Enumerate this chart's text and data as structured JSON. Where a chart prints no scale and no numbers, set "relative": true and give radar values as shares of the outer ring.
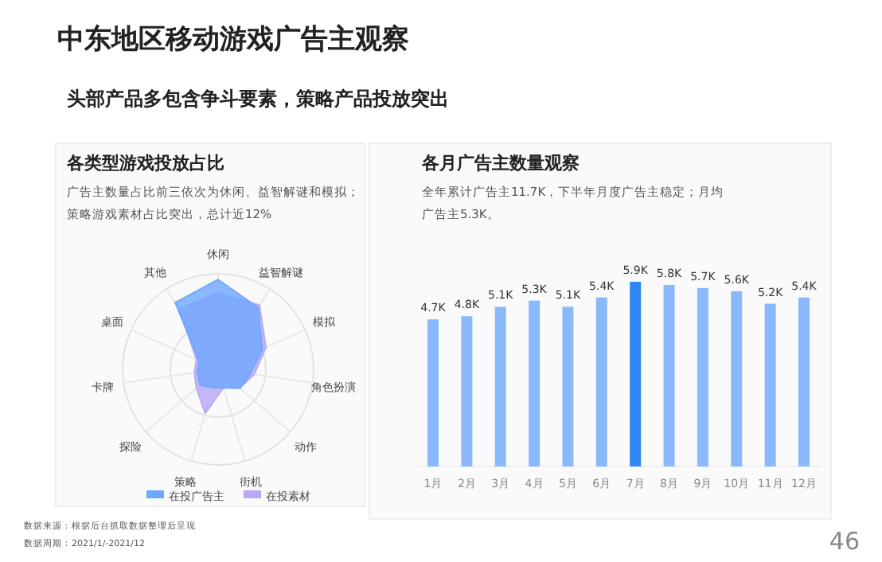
{
  "chart_data": [
    {
      "type": "radar",
      "title": "各类型游戏投放占比",
      "subtitle": "广告主数量占比前三依次为休闲、益智解谜和模拟；策略游戏素材占比突出，总计近12%",
      "relative": true,
      "legend": "bottom",
      "categories": [
        "休闲",
        "益智解谜",
        "模拟",
        "角色扮演",
        "动作",
        "街机",
        "策略",
        "探险",
        "卡牌",
        "桌面",
        "其他"
      ],
      "series": [
        {
          "name": "在投广告主",
          "color": "#6ea8fe",
          "values": [
            0.94,
            0.77,
            0.51,
            0.34,
            0.3,
            0.2,
            0.2,
            0.25,
            0.22,
            0.22,
            0.83
          ]
        },
        {
          "name": "在投素材",
          "color": "#b9a8f8",
          "values": [
            0.8,
            0.8,
            0.55,
            0.38,
            0.3,
            0.2,
            0.48,
            0.3,
            0.25,
            0.25,
            0.75
          ]
        }
      ],
      "annotations": [
        "中东地区移动游戏广告主观察",
        "头部产品多包含争斗要素，策略产品投放突出",
        "数据来源：根据后台抓取数据整理后呈现",
        "数据周期：2021/1/-2021/12",
        "46"
      ]
    },
    {
      "type": "bar",
      "title": "各月广告主数量观察",
      "subtitle": "全年累计广告主11.7K，下半年月度广告主稳定；月均广告主5.3K。",
      "relative": false,
      "categories": [
        "1月",
        "2月",
        "3月",
        "4月",
        "5月",
        "6月",
        "7月",
        "8月",
        "9月",
        "10月",
        "11月",
        "12月"
      ],
      "values": [
        4.7,
        4.8,
        5.1,
        5.3,
        5.1,
        5.4,
        5.9,
        5.8,
        5.7,
        5.6,
        5.2,
        5.4
      ],
      "value_labels": [
        "4.7K",
        "4.8K",
        "5.1K",
        "5.3K",
        "5.1K",
        "5.4K",
        "5.9K",
        "5.8K",
        "5.7K",
        "5.6K",
        "5.2K",
        "5.4K"
      ],
      "colors": [
        "#8ab9fb",
        "#8ab9fb",
        "#8ab9fb",
        "#8ab9fb",
        "#8ab9fb",
        "#8ab9fb",
        "#2e86f5",
        "#8ab9fb",
        "#8ab9fb",
        "#8ab9fb",
        "#8ab9fb",
        "#8ab9fb"
      ]
    }
  ]
}
